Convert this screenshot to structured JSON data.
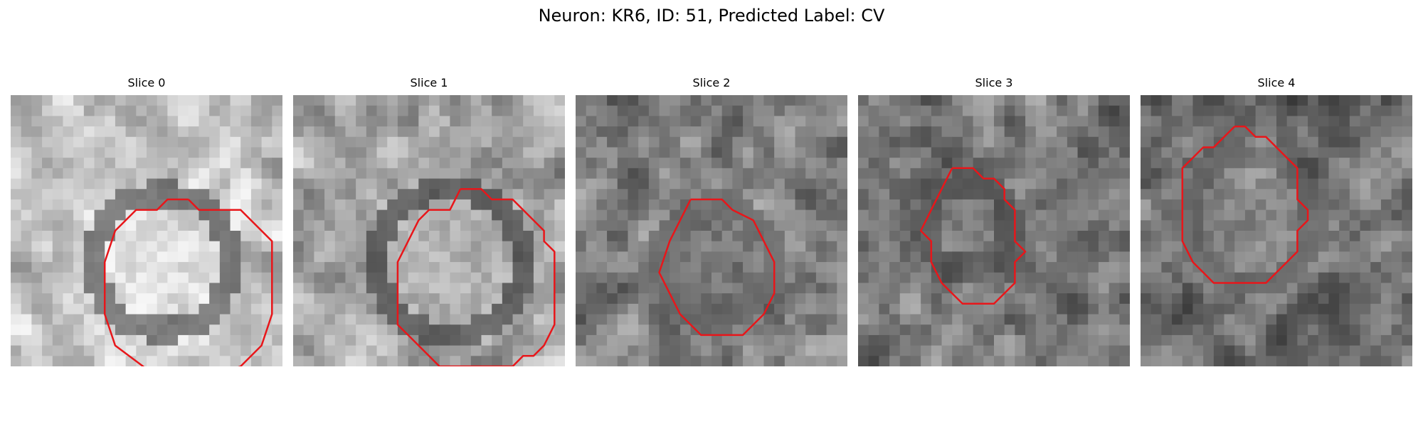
{
  "figure": {
    "title": "Neuron: KR6, ID: 51, Predicted Label: CV",
    "outline_color": "#e8161a",
    "panels": [
      {
        "title": "Slice 0",
        "content": "bright round neuron soma outlined by red contour"
      },
      {
        "title": "Slice 1",
        "content": "round soma with dark ring outlined by red contour"
      },
      {
        "title": "Slice 2",
        "content": "mid-gray round soma outlined by red contour"
      },
      {
        "title": "Slice 3",
        "content": "small gray soma outlined by irregular red contour"
      },
      {
        "title": "Slice 4",
        "content": "gray soma with dark rim outlined by red contour"
      }
    ]
  }
}
